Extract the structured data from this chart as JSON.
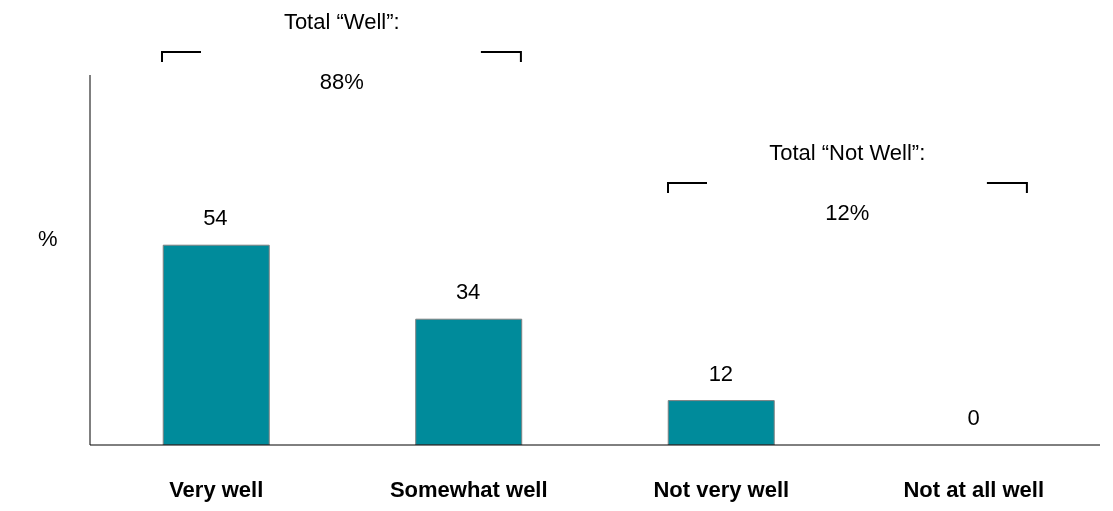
{
  "chart_data": {
    "type": "bar",
    "ylabel": "%",
    "categories": [
      "Very well",
      "Somewhat well",
      "Not very well",
      "Not at all well"
    ],
    "values": [
      54,
      34,
      12,
      0
    ],
    "color": "#008b9b",
    "ylim": [
      0,
      100
    ],
    "tick_labels": "x",
    "data_labels": true,
    "grid": false,
    "annotations": [
      "Total “Well”:",
      "88%",
      "Total “Not Well”:",
      "12%"
    ]
  }
}
